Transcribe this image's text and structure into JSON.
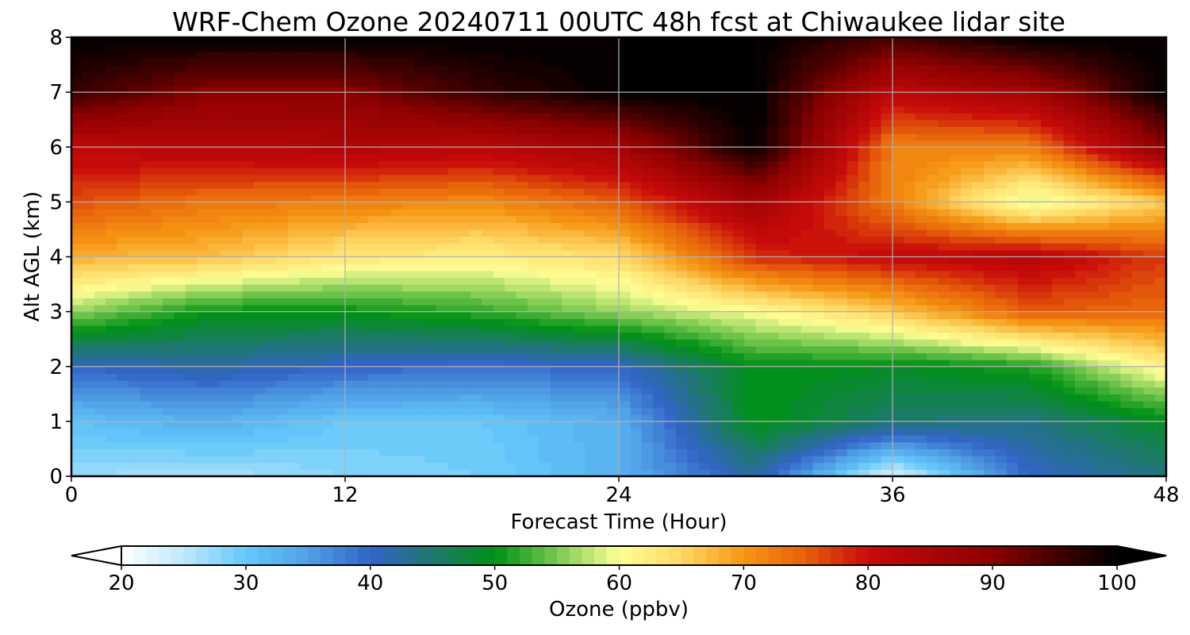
{
  "chart_data": {
    "type": "heatmap",
    "title": "WRF-Chem Ozone  20240711 00UTC 48h fcst at Chiwaukee lidar site",
    "xlabel": "Forecast Time (Hour)",
    "ylabel": "Alt AGL (km)",
    "xlim": [
      0,
      48
    ],
    "ylim": [
      0,
      8
    ],
    "x_ticks": [
      0,
      12,
      24,
      36,
      48
    ],
    "y_ticks": [
      0,
      1,
      2,
      3,
      4,
      5,
      6,
      7,
      8
    ],
    "grid": true,
    "x": [
      0,
      6,
      12,
      18,
      24,
      30,
      36,
      42,
      48
    ],
    "y": [
      0,
      1,
      2,
      3,
      4,
      5,
      6,
      7,
      8
    ],
    "z": [
      [
        27,
        26,
        28,
        29,
        33,
        42,
        22,
        40,
        44
      ],
      [
        31,
        33,
        30,
        30,
        33,
        50,
        45,
        44,
        49
      ],
      [
        40,
        42,
        40,
        39,
        40,
        50,
        49,
        51,
        62
      ],
      [
        56,
        50,
        50,
        52,
        56,
        60,
        66,
        75,
        74
      ],
      [
        68,
        67,
        63,
        62,
        64,
        78,
        81,
        83,
        77
      ],
      [
        76,
        73,
        72,
        71,
        75,
        86,
        72,
        58,
        66
      ],
      [
        82,
        83,
        84,
        83,
        86,
        100,
        72,
        72,
        90
      ],
      [
        96,
        90,
        90,
        96,
        100,
        100,
        82,
        86,
        100
      ],
      [
        100,
        100,
        100,
        100,
        100,
        100,
        95,
        100,
        100
      ]
    ],
    "colorbar": {
      "label": "Ozone  (ppbv)",
      "ticks": [
        20,
        30,
        40,
        50,
        60,
        70,
        80,
        90,
        100
      ],
      "range": [
        20,
        100
      ],
      "extend": "both",
      "levels": 80
    }
  }
}
